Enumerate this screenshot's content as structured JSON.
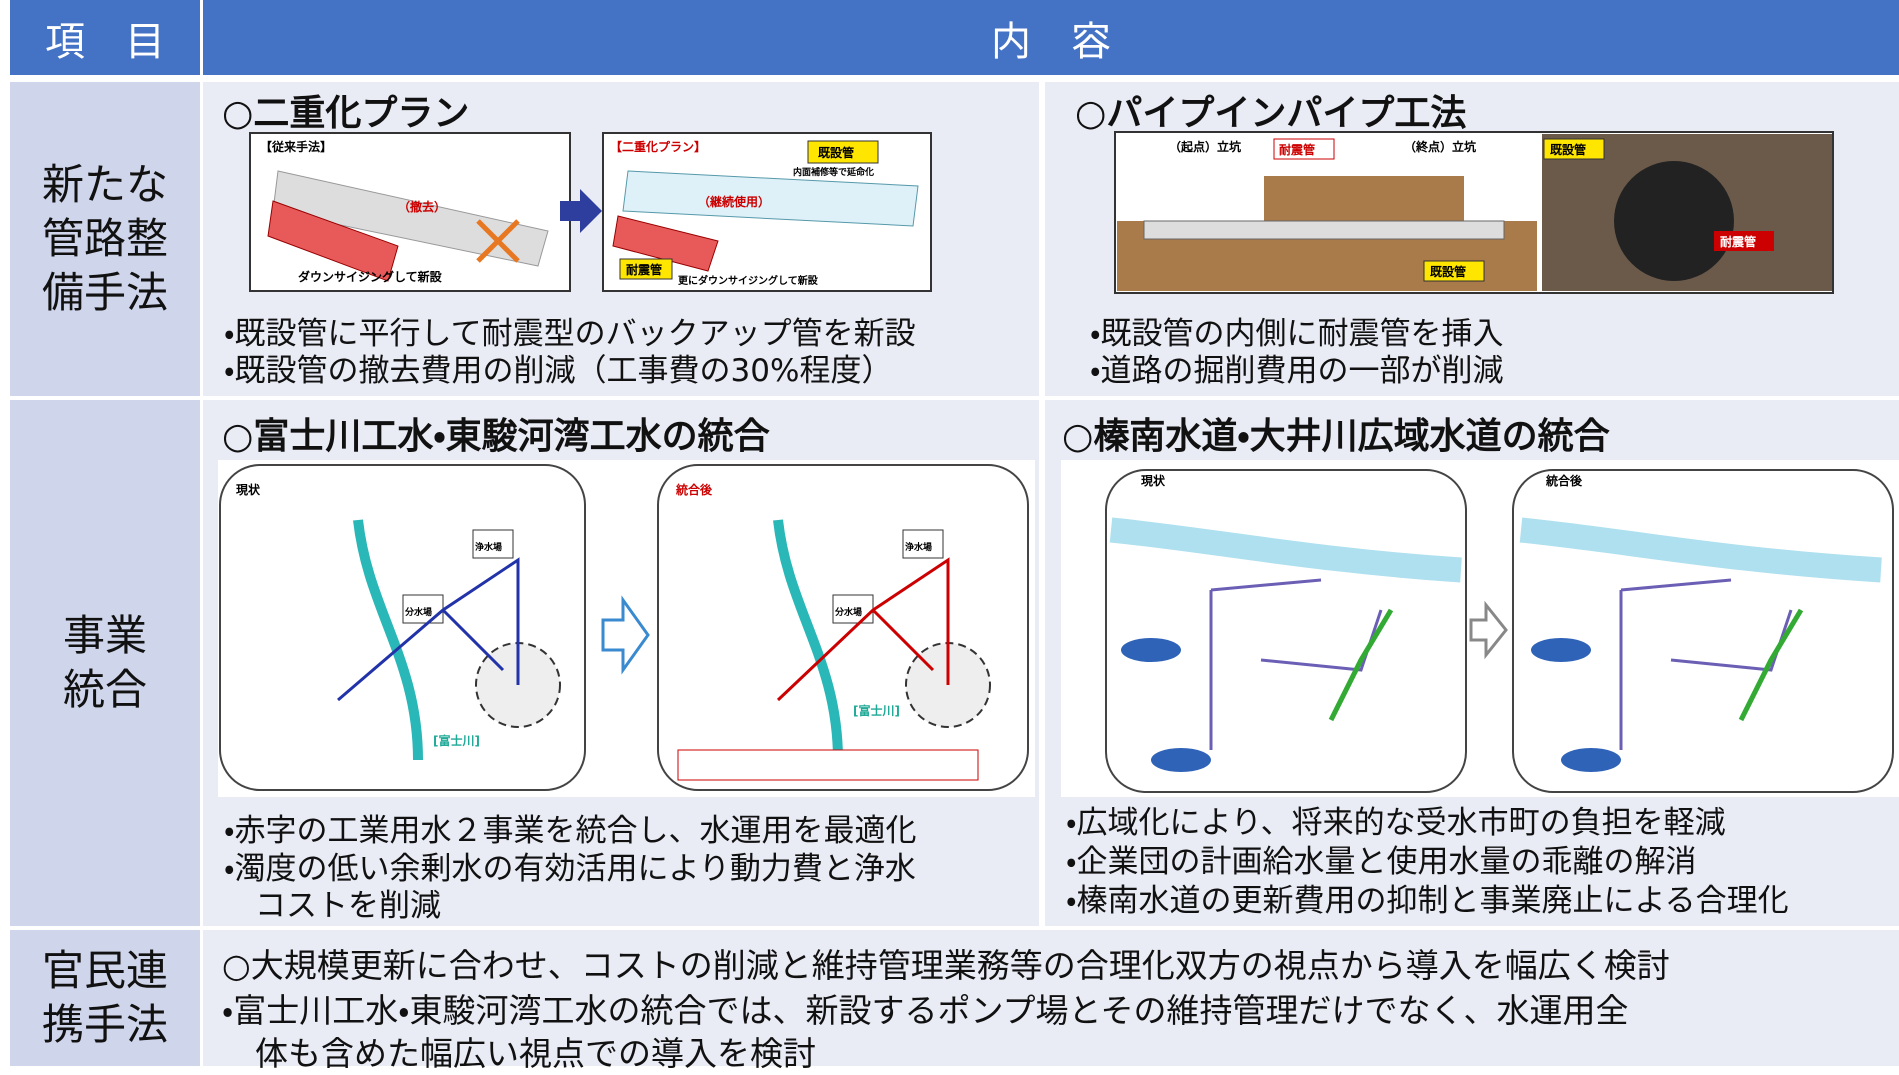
{
  "header": {
    "item": "項　目",
    "content": "内　容"
  },
  "rows": [
    {
      "label_lines": [
        "新たな",
        "管路整",
        "備手法"
      ],
      "sections": [
        {
          "title": "○二重化プラン",
          "figure_labels": [
            "【従来手法】",
            "（撤去）",
            "ダウンサイジングして新設",
            "【二重化プラン】",
            "既設管",
            "内面補修等で延命化",
            "（継続使用）",
            "耐震管",
            "更にダウンサイジングして新設"
          ],
          "lines": [
            "・既設管に平行して耐震型のバックアップ管を新設",
            "・既設管の撤去費用の削減（工事費の30%程度）"
          ]
        },
        {
          "title": "○パイプインパイプ工法",
          "figure_labels": [
            "（起点）立坑",
            "耐震管",
            "（終点）立坑",
            "既設管",
            "既設管",
            "耐震管"
          ],
          "lines": [
            "・既設管の内側に耐震管を挿入",
            "・道路の掘削費用の一部が削減"
          ]
        }
      ]
    },
    {
      "label_lines": [
        "事業",
        "統合"
      ],
      "sections": [
        {
          "title": "○富士川工水・東駿河湾工水の統合",
          "figure_labels": [
            "現状",
            "統合後",
            "[富士川]",
            "[富士川]",
            "浄水場",
            "分水場",
            "浄水場",
            "分水場"
          ],
          "lines": [
            "・赤字の工業用水２事業を統合し、水運用を最適化",
            "・濁度の低い余剰水の有効活用により動力費と浄水",
            "　コストを削減"
          ]
        },
        {
          "title": "○榛南水道・大井川広域水道の統合",
          "figure_labels": [
            "現状",
            "統合後"
          ],
          "lines": [
            "・広域化により、将来的な受水市町の負担を軽減",
            "・企業団の計画給水量と使用水量の乖離の解消",
            "・榛南水道の更新費用の抑制と事業廃止による合理化"
          ]
        }
      ]
    },
    {
      "label_lines": [
        "官民連",
        "携手法"
      ],
      "lines": [
        "○大規模更新に合わせ、コストの削減と維持管理業務等の合理化双方の視点から導入を幅広く検討",
        "・富士川工水・東駿河湾工水の統合では、新設するポンプ場とその維持管理だけでなく、水運用全",
        "　体も含めた幅広い視点での導入を検討"
      ]
    }
  ]
}
